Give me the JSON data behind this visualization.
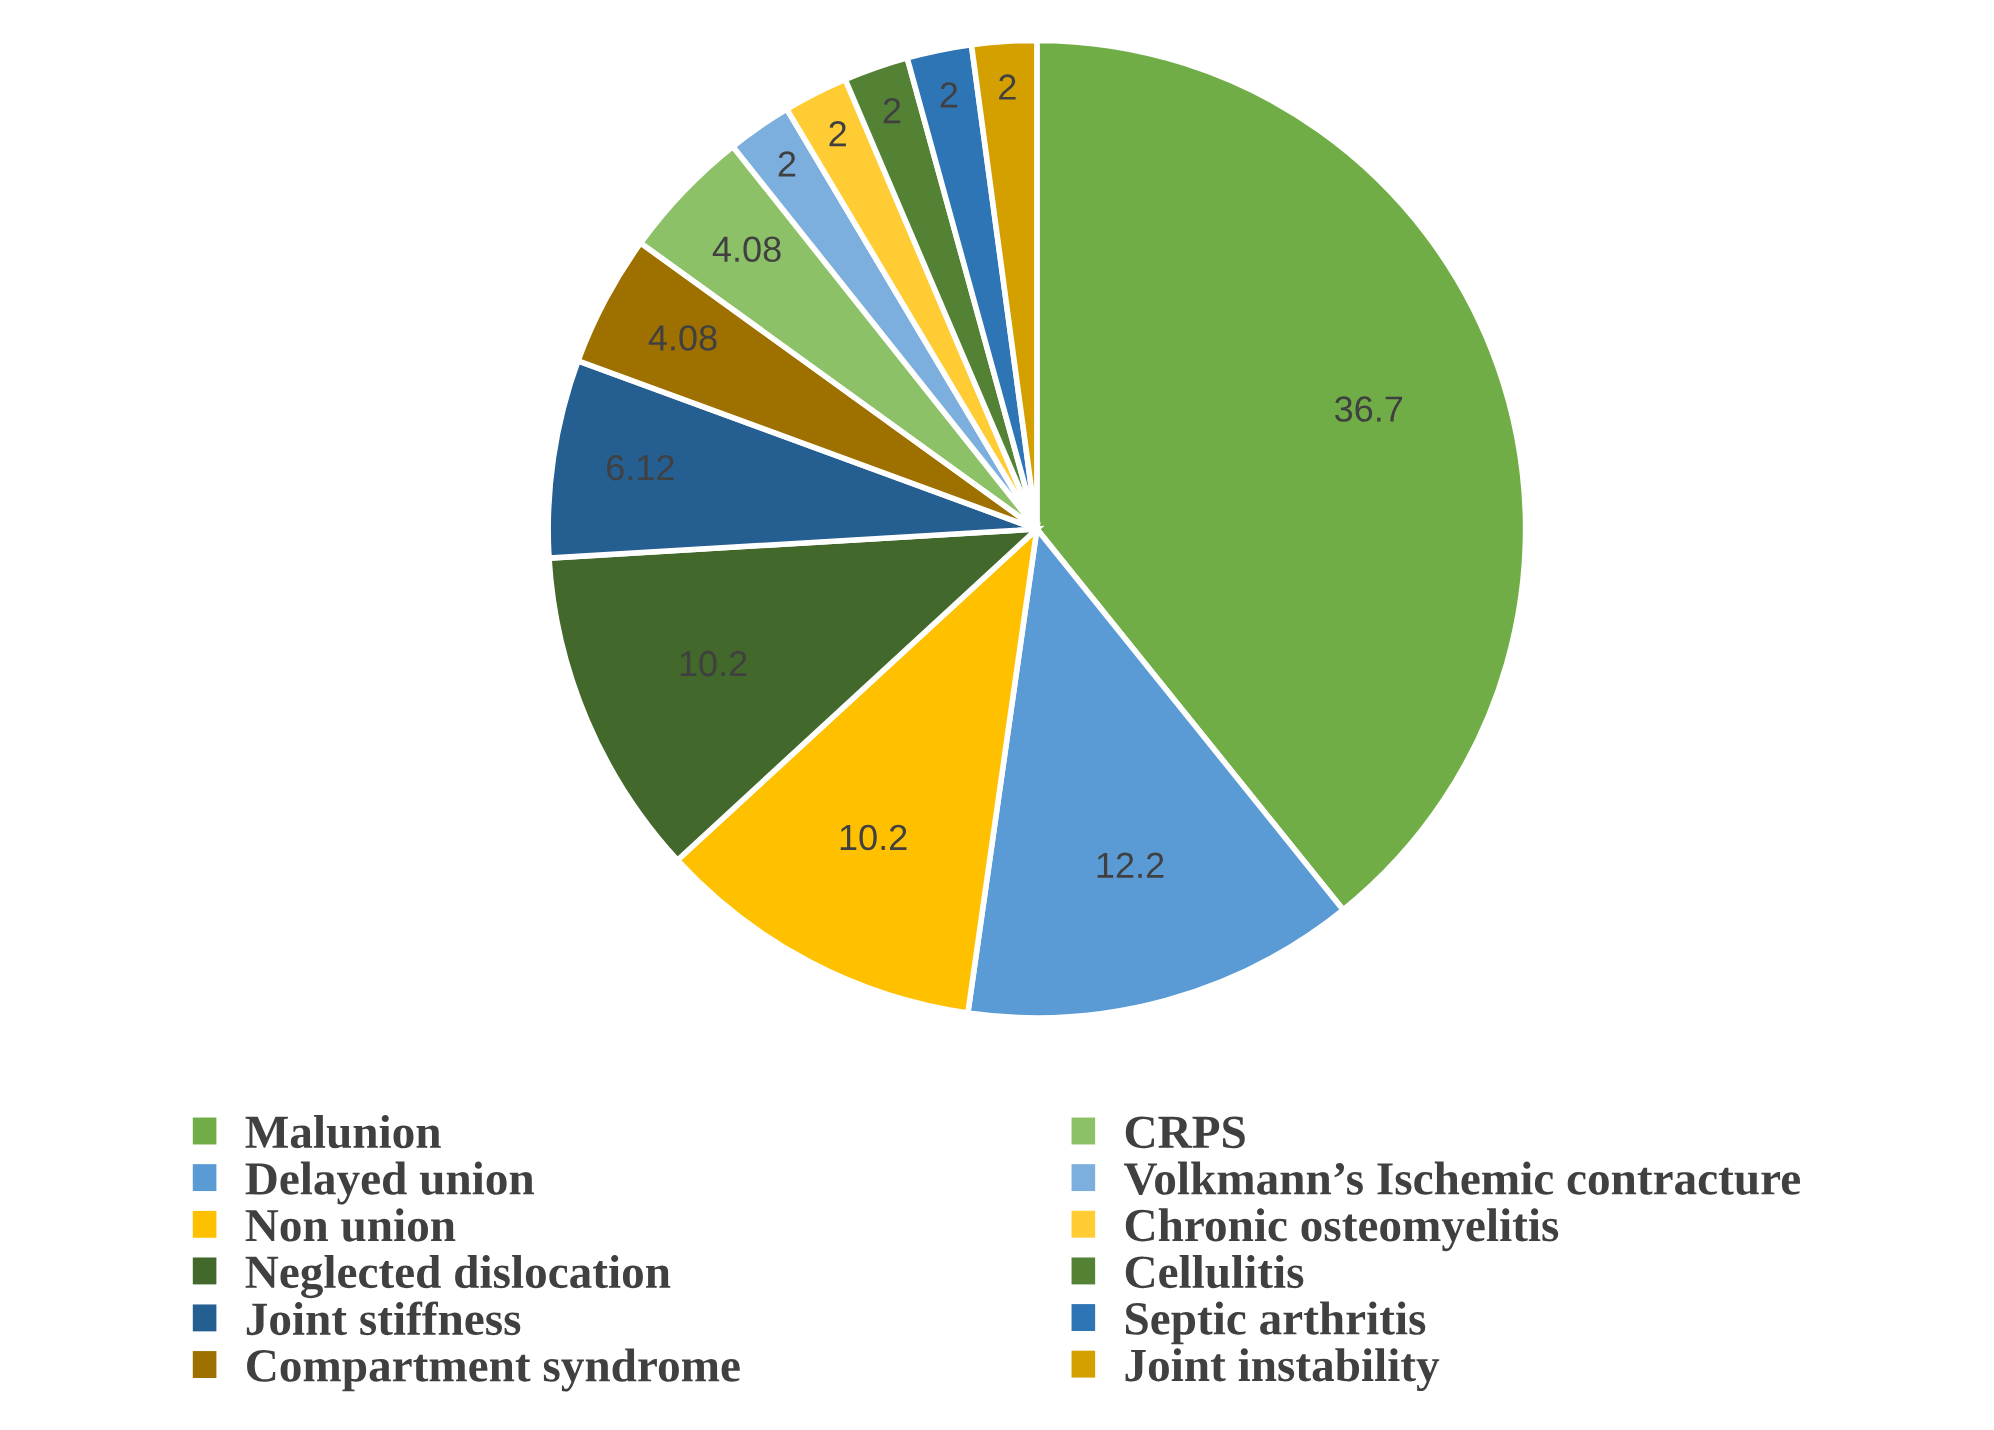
{
  "chart_data": {
    "type": "pie",
    "categories": [
      "Malunion",
      "Delayed union",
      "Non union",
      "Neglected dislocation",
      "Joint stiffness",
      "Compartment syndrome",
      "CRPS",
      "Volkmann’s Ischemic contracture",
      "Chronic osteomyelitis",
      "Cellulitis",
      "Septic arthritis",
      "Joint instability"
    ],
    "values": [
      36.7,
      12.2,
      10.2,
      10.2,
      6.12,
      4.08,
      4.08,
      2,
      2,
      2,
      2,
      2
    ],
    "colors": [
      "#70ad47",
      "#5b9bd5",
      "#ffc000",
      "#43682b",
      "#255e91",
      "#9e7000",
      "#8cc168",
      "#7cafdd",
      "#ffcd33",
      "#548235",
      "#2e75b6",
      "#d4a000"
    ],
    "data_labels": true,
    "legend": "bottom"
  }
}
